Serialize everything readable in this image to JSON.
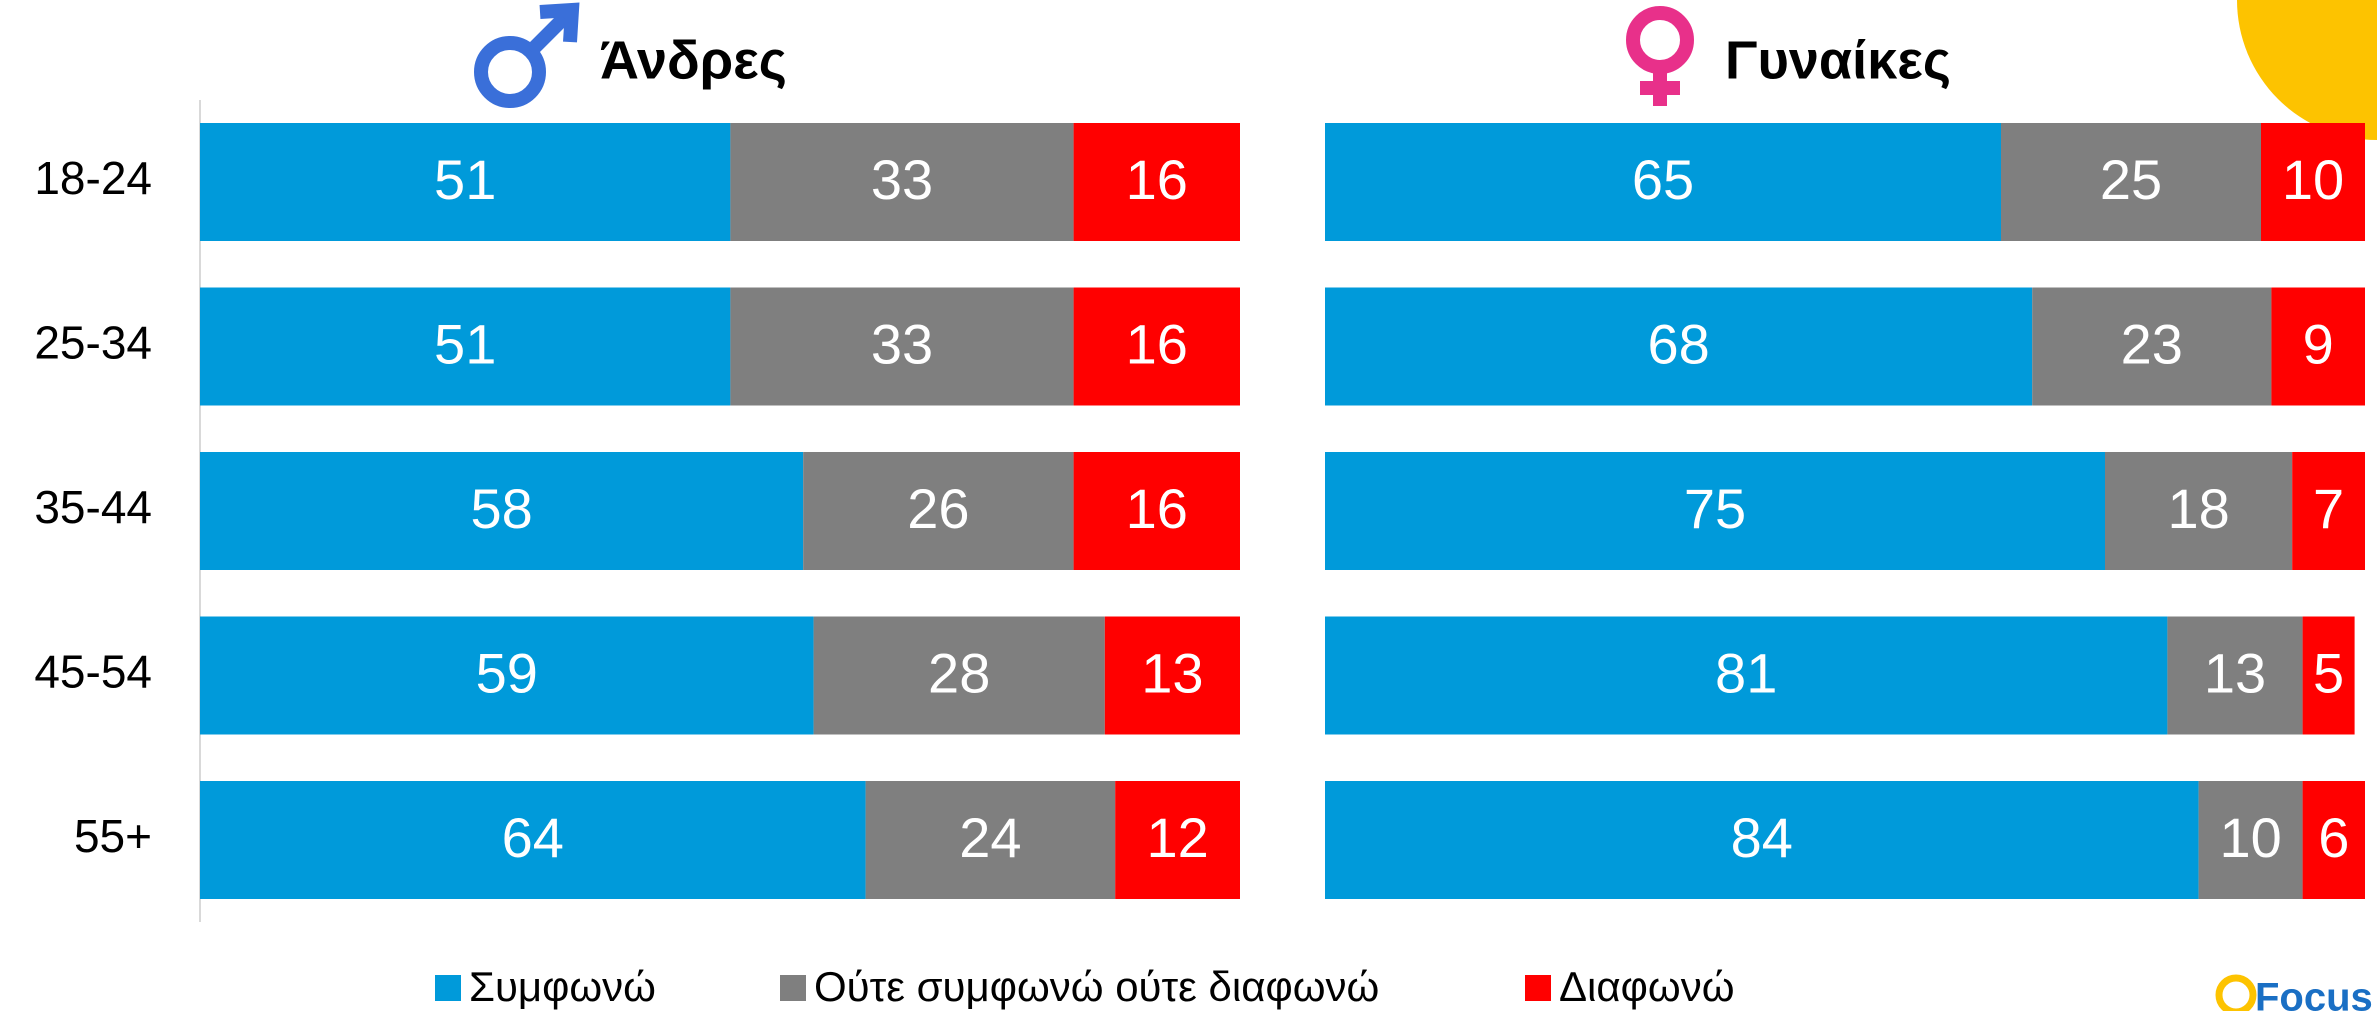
{
  "chart_data": [
    {
      "type": "stacked-bar",
      "title": "Άνδρες",
      "categories": [
        "18-24",
        "25-34",
        "35-44",
        "45-54",
        "55+"
      ],
      "xlim": [
        0,
        100
      ],
      "series": [
        {
          "name": "Συμφωνώ",
          "color": "#009ada",
          "values": [
            51,
            51,
            58,
            59,
            64
          ]
        },
        {
          "name": "Ούτε συμφωνώ ούτε διαφωνώ",
          "color": "#7f7f7f",
          "values": [
            33,
            33,
            26,
            28,
            24
          ]
        },
        {
          "name": "Διαφωνώ",
          "color": "#ff0000",
          "values": [
            16,
            16,
            16,
            13,
            12
          ]
        }
      ]
    },
    {
      "type": "stacked-bar",
      "title": "Γυναίκες",
      "xlim": [
        0,
        100
      ],
      "series": [
        {
          "color": "#009ada",
          "values": [
            65,
            68,
            75,
            81,
            84
          ]
        },
        {
          "color": "#7f7f7f",
          "values": [
            25,
            23,
            18,
            13,
            10
          ]
        },
        {
          "color": "#ff0000",
          "values": [
            10,
            9,
            7,
            5,
            6
          ]
        }
      ]
    }
  ],
  "logo": "Focus"
}
